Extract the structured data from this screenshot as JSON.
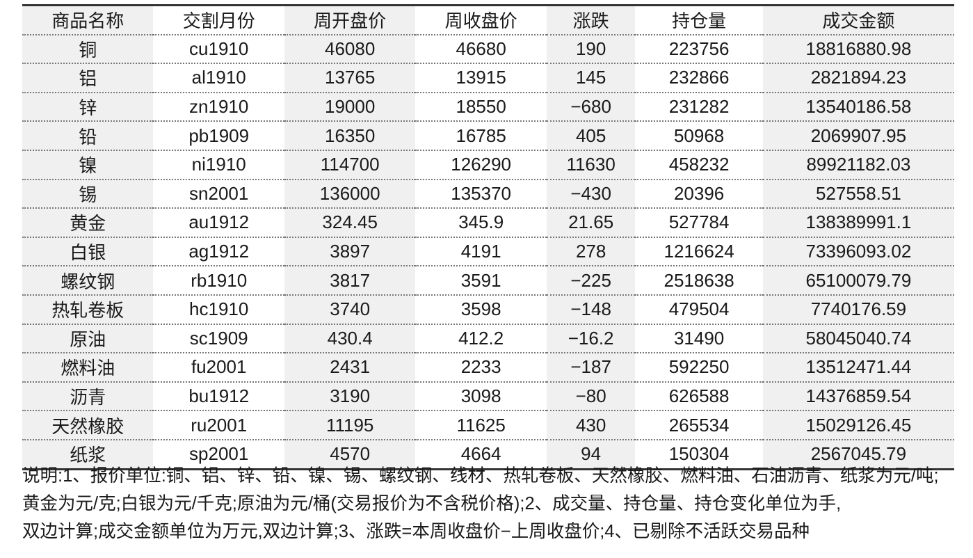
{
  "table": {
    "headers": [
      "商品名称",
      "交割月份",
      "周开盘价",
      "周收盘价",
      "涨跌",
      "持仓量",
      "成交金额"
    ],
    "rows": [
      [
        "铜",
        "cu1910",
        "46080",
        "46680",
        "190",
        "223756",
        "18816880.98"
      ],
      [
        "铝",
        "al1910",
        "13765",
        "13915",
        "145",
        "232866",
        "2821894.23"
      ],
      [
        "锌",
        "zn1910",
        "19000",
        "18550",
        "−680",
        "231282",
        "13540186.58"
      ],
      [
        "铅",
        "pb1909",
        "16350",
        "16785",
        "405",
        "50968",
        "2069907.95"
      ],
      [
        "镍",
        "ni1910",
        "114700",
        "126290",
        "11630",
        "458232",
        "89921182.03"
      ],
      [
        "锡",
        "sn2001",
        "136000",
        "135370",
        "−430",
        "20396",
        "527558.51"
      ],
      [
        "黄金",
        "au1912",
        "324.45",
        "345.9",
        "21.65",
        "527784",
        "138389991.1"
      ],
      [
        "白银",
        "ag1912",
        "3897",
        "4191",
        "278",
        "1216624",
        "73396093.02"
      ],
      [
        "螺纹钢",
        "rb1910",
        "3817",
        "3591",
        "−225",
        "2518638",
        "65100079.79"
      ],
      [
        "热轧卷板",
        "hc1910",
        "3740",
        "3598",
        "−148",
        "479504",
        "7740176.59"
      ],
      [
        "原油",
        "sc1909",
        "430.4",
        "412.2",
        "−16.2",
        "31490",
        "58045040.74"
      ],
      [
        "燃料油",
        "fu2001",
        "2431",
        "2233",
        "−187",
        "592250",
        "13512471.44"
      ],
      [
        "沥青",
        "bu1912",
        "3190",
        "3098",
        "−80",
        "626588",
        "14376859.54"
      ],
      [
        "天然橡胶",
        "ru2001",
        "11195",
        "11625",
        "430",
        "265534",
        "15029126.45"
      ],
      [
        "纸浆",
        "sp2001",
        "4570",
        "4664",
        "94",
        "150304",
        "2567045.79"
      ]
    ]
  },
  "notes": [
    "说明:1、报价单位:铜、铝、锌、铅、镍、锡、螺纹钢、线材、热轧卷板、天然橡胶、燃料油、石油沥青、纸浆为元/吨;",
    "黄金为元/克;白银为元/千克;原油为元/桶(交易报价为不含税价格);2、成交量、持仓量、持仓变化单位为手,",
    "双边计算;成交金额单位为万元,双边计算;3、涨跌=本周收盘价−上周收盘价;4、已剔除不活跃交易品种"
  ]
}
